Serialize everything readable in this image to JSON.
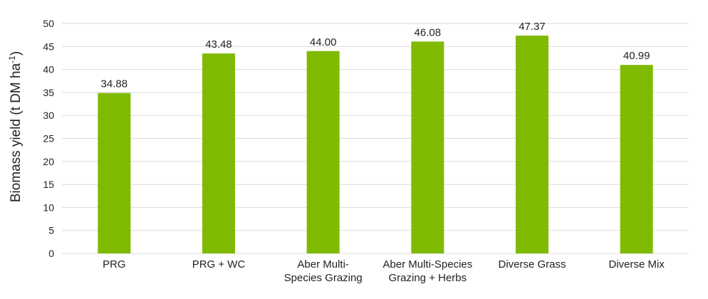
{
  "chart_data": {
    "type": "bar",
    "title": "",
    "xlabel": "",
    "ylabel": "Biomass yield (t DM ha",
    "ylabel_superscript": "-1",
    "ylabel_suffix": ")",
    "categories": [
      [
        "PRG"
      ],
      [
        "PRG + WC"
      ],
      [
        "Aber Multi-",
        "Species Grazing"
      ],
      [
        "Aber Multi-Species",
        "Grazing + Herbs"
      ],
      [
        "Diverse Grass"
      ],
      [
        "Diverse Mix"
      ]
    ],
    "values": [
      34.88,
      43.48,
      44.0,
      46.08,
      47.37,
      40.99
    ],
    "data_labels": [
      "34.88",
      "43.48",
      "44.00",
      "46.08",
      "47.37",
      "40.99"
    ],
    "ylim": [
      0,
      50
    ],
    "yticks": [
      0,
      5,
      10,
      15,
      20,
      25,
      30,
      35,
      40,
      45,
      50
    ],
    "grid": true,
    "legend": "none",
    "bar_color": "#7fba00"
  }
}
